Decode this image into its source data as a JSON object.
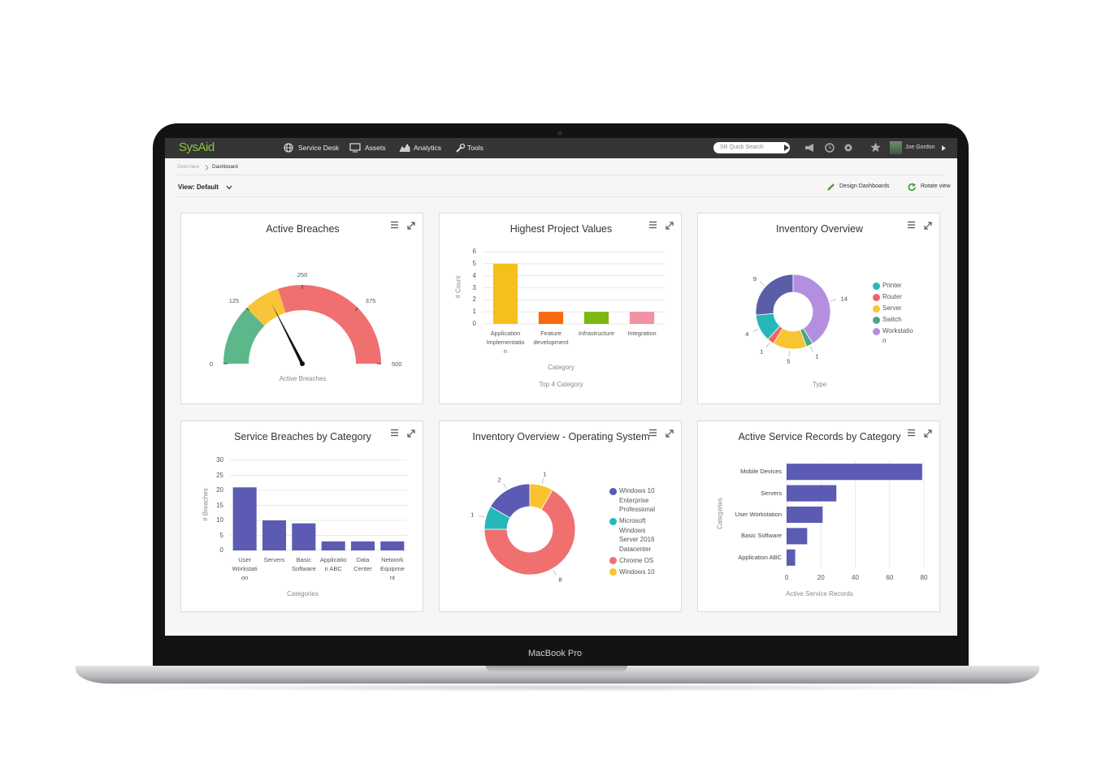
{
  "app": {
    "logo": "SysAid",
    "nav": [
      "Service Desk",
      "Assets",
      "Analytics",
      "Tools"
    ],
    "search": "SR Quick Search",
    "user": "Joe Gordon",
    "breadcrumb": [
      "Overview",
      "Dashboard"
    ],
    "view": "View: Default",
    "actions": [
      "Design Dashboards",
      "Rotate view"
    ],
    "device": "MacBook Pro"
  },
  "chart_data": [
    {
      "type": "gauge",
      "title": "Active Breaches",
      "x_label": "Active Breaches",
      "value": 175,
      "ylim": [
        0,
        500
      ],
      "yticks": [
        0,
        125,
        250,
        375,
        500
      ],
      "bands": [
        {
          "from": 0,
          "to": 125,
          "color": "#5cb88a"
        },
        {
          "from": 125,
          "to": 200,
          "color": "#f8c53a"
        },
        {
          "from": 200,
          "to": 500,
          "color": "#f07070"
        }
      ]
    },
    {
      "type": "bar",
      "title": "Highest Project Values",
      "x_label": "Category",
      "subtitle": "Top 4 Category",
      "y_label": "# Count",
      "categories": [
        "Application Implementation",
        "Feature development",
        "Infrastructure",
        "Integration"
      ],
      "values": [
        5,
        1,
        1,
        1
      ],
      "colors": [
        "#f6c01a",
        "#f9690e",
        "#7db712",
        "#f490a3"
      ],
      "ylim": [
        0,
        6
      ],
      "yticks": [
        0,
        1,
        2,
        3,
        4,
        5,
        6
      ],
      "grid": true
    },
    {
      "type": "donut",
      "title": "Inventory Overview",
      "x_label": "Type",
      "categories": [
        null,
        "Printer",
        "Router",
        "Server",
        "Switch",
        "Workstation"
      ],
      "values": [
        9,
        4,
        1,
        5,
        1,
        14
      ],
      "colors": [
        "#5b5ea6",
        "#26b8b8",
        "#ef6461",
        "#f7c52f",
        "#4aa787",
        "#b48fe0"
      ]
    },
    {
      "type": "bar",
      "title": "Service Breaches by Category",
      "x_label": "Categories",
      "y_label": "# Breaches",
      "categories": [
        "User Workstation",
        "Servers",
        "Basic Software",
        "Application ABC",
        "Data Center",
        "Network Equipment"
      ],
      "values": [
        21,
        10,
        9,
        3,
        3,
        3
      ],
      "color": "#5b5bb3",
      "ylim": [
        0,
        30
      ],
      "yticks": [
        0,
        5,
        10,
        15,
        20,
        25,
        30
      ],
      "grid": true
    },
    {
      "type": "donut",
      "title": "Inventory Overview - Operating System",
      "categories": [
        "Windows 10 Enterprise Professional",
        "Microsoft Windows Server 2016 Datacenter",
        "Chrome OS",
        "Windows 10"
      ],
      "values": [
        2,
        1,
        8,
        1
      ],
      "colors": [
        "#5b5bb3",
        "#26b8b8",
        "#f07070",
        "#f9c22e"
      ]
    },
    {
      "type": "hbar",
      "title": "Active Service Records by Category",
      "x_label": "Active Service Records",
      "y_label": "Categories",
      "categories": [
        "Mobile Devices",
        "Servers",
        "User Workstation",
        "Basic Software",
        "Application ABC"
      ],
      "values": [
        79,
        29,
        21,
        12,
        5
      ],
      "color": "#5b5bb3",
      "xlim": [
        0,
        80
      ],
      "xticks": [
        0,
        20,
        40,
        60,
        80
      ],
      "grid": true
    }
  ]
}
